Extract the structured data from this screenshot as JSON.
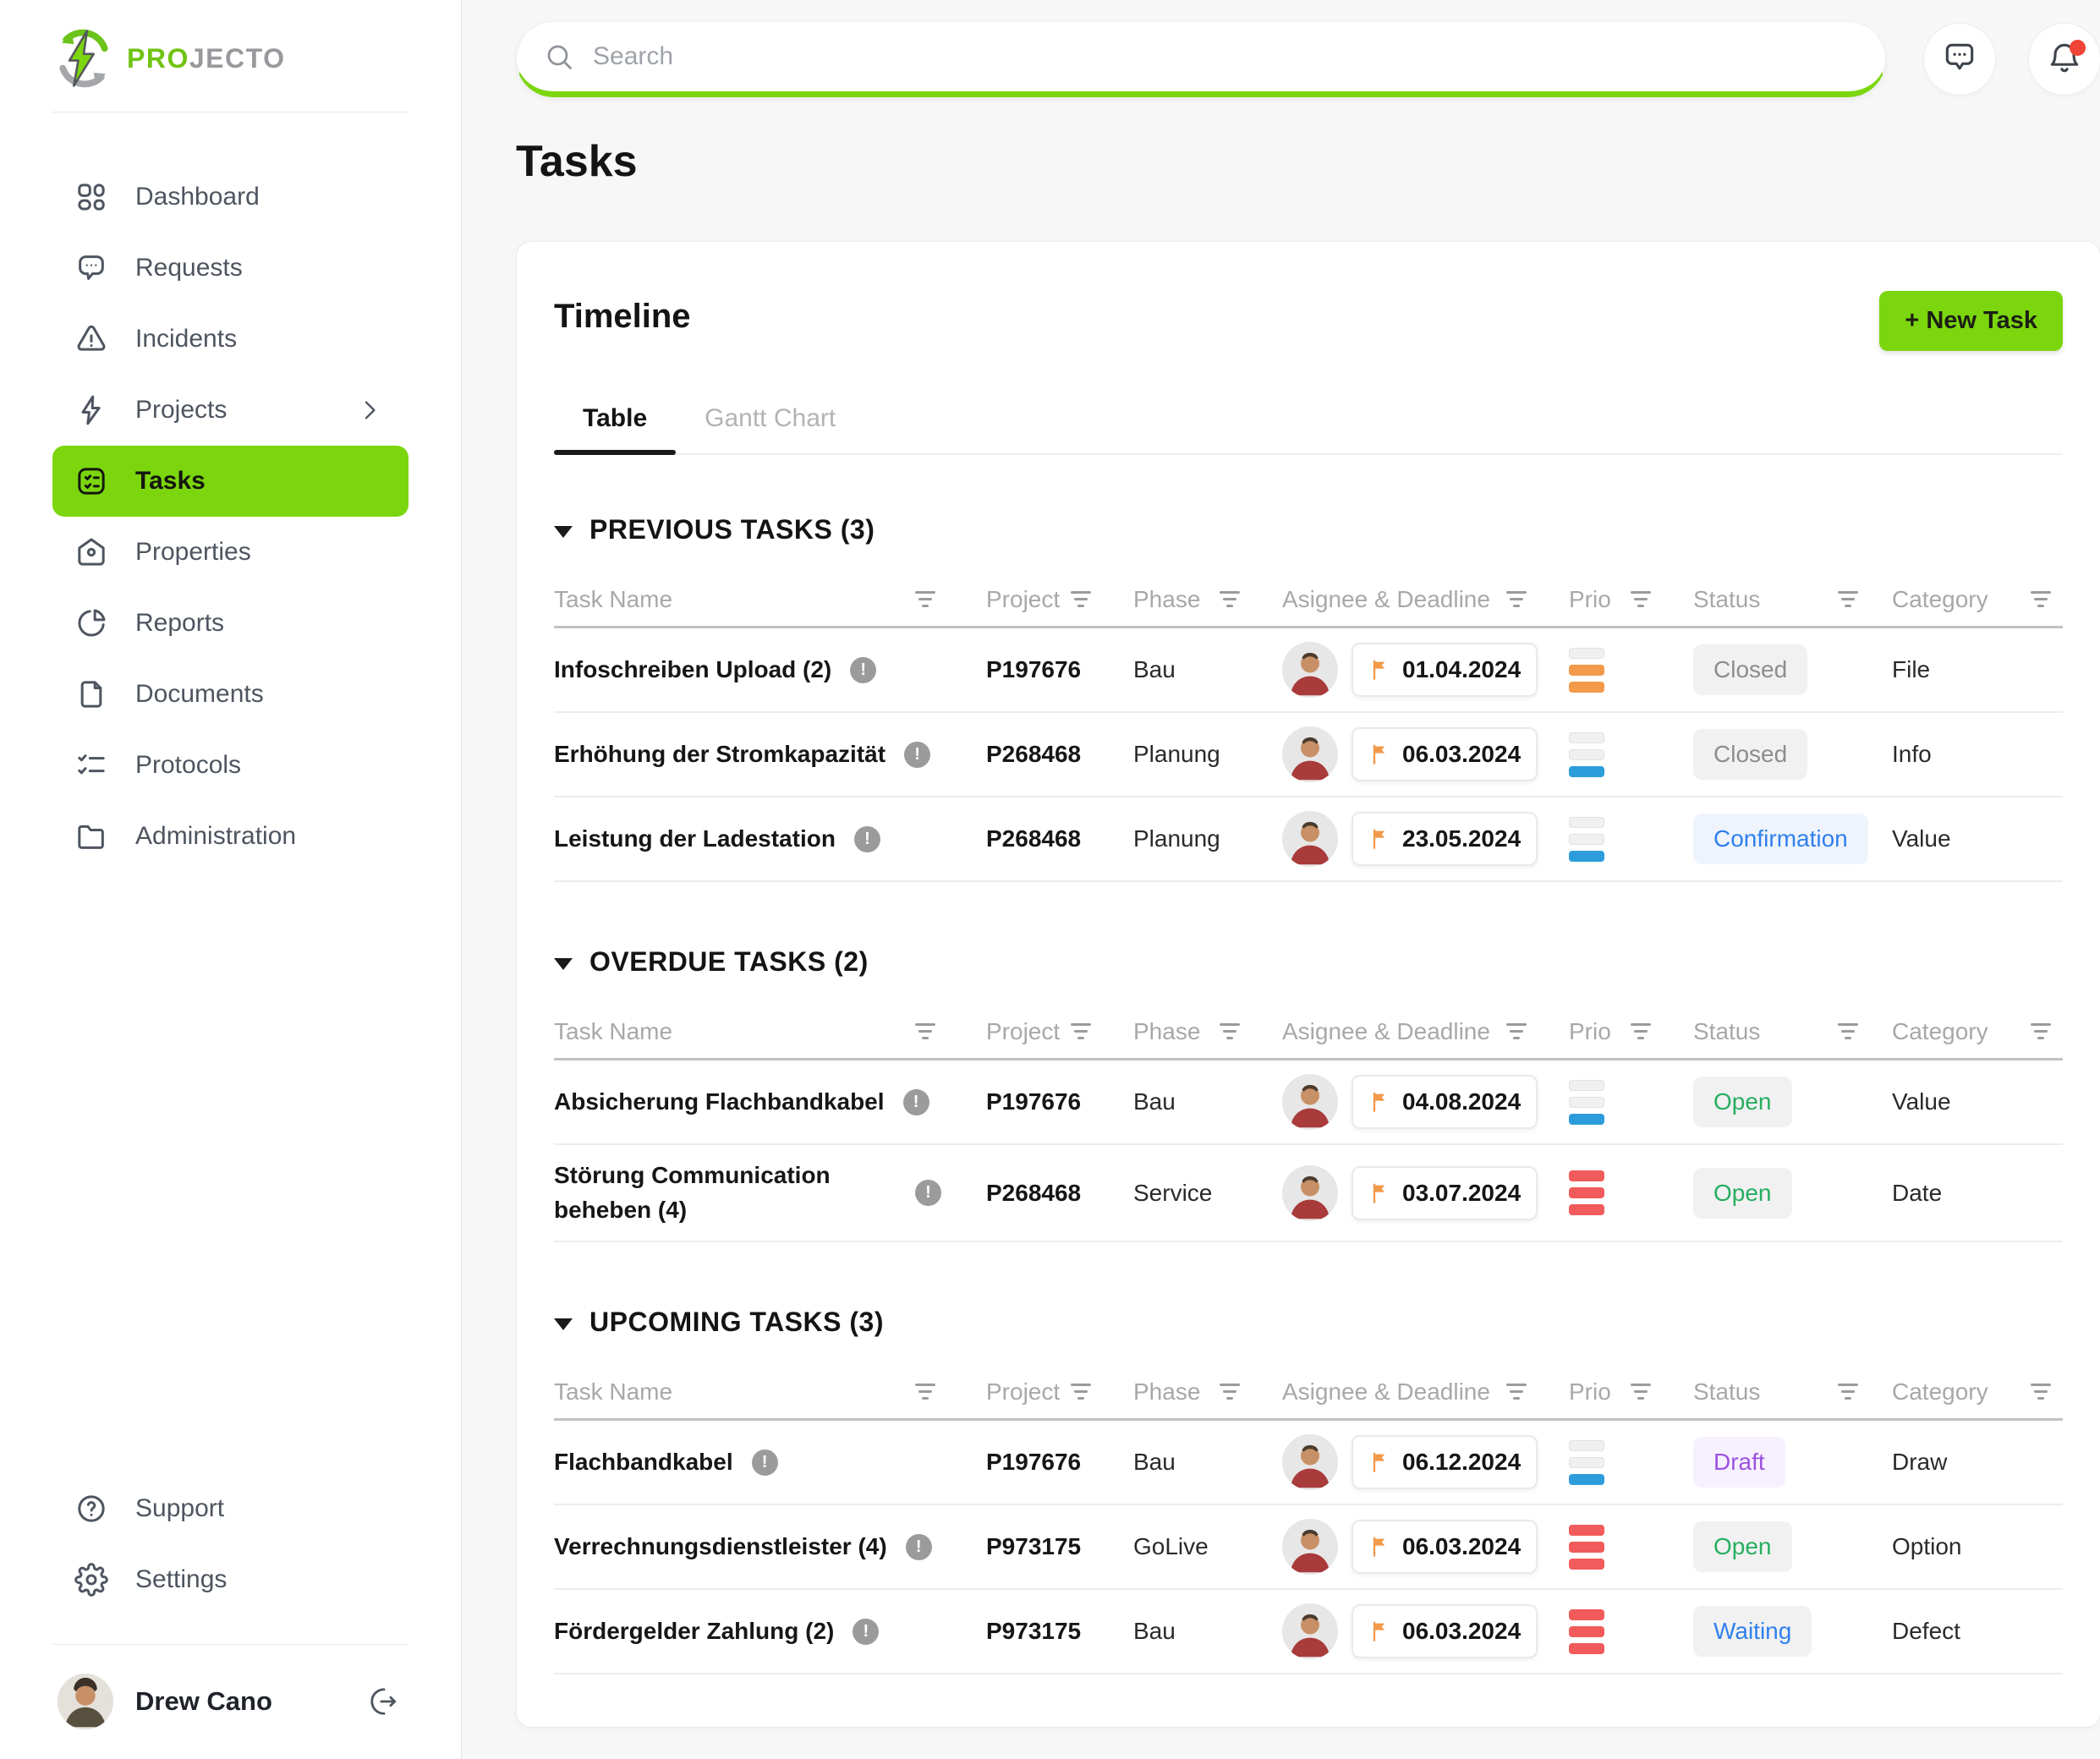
{
  "brand": {
    "pro": "PRO",
    "jecto": "JECTO"
  },
  "search": {
    "placeholder": "Search"
  },
  "topbar": {
    "buttons": [
      {
        "icon": "chat-bubble",
        "has_notification": false
      },
      {
        "icon": "bell",
        "has_notification": true
      }
    ]
  },
  "sidebar": {
    "items": [
      {
        "label": "Dashboard",
        "icon": "dashboard",
        "active": false,
        "chevron": false
      },
      {
        "label": "Requests",
        "icon": "requests",
        "active": false,
        "chevron": false
      },
      {
        "label": "Incidents",
        "icon": "incidents",
        "active": false,
        "chevron": false
      },
      {
        "label": "Projects",
        "icon": "projects",
        "active": false,
        "chevron": true
      },
      {
        "label": "Tasks",
        "icon": "tasks",
        "active": true,
        "chevron": false
      },
      {
        "label": "Properties",
        "icon": "properties",
        "active": false,
        "chevron": false
      },
      {
        "label": "Reports",
        "icon": "reports",
        "active": false,
        "chevron": false
      },
      {
        "label": "Documents",
        "icon": "documents",
        "active": false,
        "chevron": false
      },
      {
        "label": "Protocols",
        "icon": "protocols",
        "active": false,
        "chevron": false
      },
      {
        "label": "Administration",
        "icon": "administration",
        "active": false,
        "chevron": false
      }
    ],
    "footer_items": [
      {
        "label": "Support",
        "icon": "support"
      },
      {
        "label": "Settings",
        "icon": "settings"
      }
    ],
    "user": {
      "name": "Drew Cano"
    }
  },
  "page": {
    "title": "Tasks"
  },
  "card": {
    "title": "Timeline",
    "new_task_label": "+ New Task",
    "tabs": [
      {
        "label": "Table",
        "active": true
      },
      {
        "label": "Gantt Chart",
        "active": false
      }
    ],
    "columns": [
      "Task Name",
      "Project",
      "Phase",
      "Asignee & Deadline",
      "Prio",
      "Status",
      "Category"
    ],
    "sections": [
      {
        "title": "PREVIOUS TASKS (3)",
        "rows": [
          {
            "name": "Infoschreiben Upload (2)",
            "project": "P197676",
            "phase": "Bau",
            "deadline": "01.04.2024",
            "prio": "medium",
            "status": "Closed",
            "category": "File"
          },
          {
            "name": "Erhöhung der Stromkapazität",
            "project": "P268468",
            "phase": "Planung",
            "deadline": "06.03.2024",
            "prio": "low",
            "status": "Closed",
            "category": "Info"
          },
          {
            "name": "Leistung der Ladestation",
            "project": "P268468",
            "phase": "Planung",
            "deadline": "23.05.2024",
            "prio": "low",
            "status": "Confirmation",
            "category": "Value"
          }
        ]
      },
      {
        "title": "OVERDUE TASKS (2)",
        "rows": [
          {
            "name": "Absicherung Flachbandkabel",
            "project": "P197676",
            "phase": "Bau",
            "deadline": "04.08.2024",
            "prio": "low",
            "status": "Open",
            "category": "Value"
          },
          {
            "name": "Störung Communication beheben (4)",
            "project": "P268468",
            "phase": "Service",
            "deadline": "03.07.2024",
            "prio": "high",
            "status": "Open",
            "category": "Date"
          }
        ]
      },
      {
        "title": "UPCOMING TASKS (3)",
        "rows": [
          {
            "name": "Flachbandkabel",
            "project": "P197676",
            "phase": "Bau",
            "deadline": "06.12.2024",
            "prio": "low",
            "status": "Draft",
            "category": "Draw"
          },
          {
            "name": "Verrechnungsdienstleister (4)",
            "project": "P973175",
            "phase": "GoLive",
            "deadline": "06.03.2024",
            "prio": "high",
            "status": "Open",
            "category": "Option"
          },
          {
            "name": "Fördergelder Zahlung (2)",
            "project": "P973175",
            "phase": "Bau",
            "deadline": "06.03.2024",
            "prio": "high",
            "status": "Waiting",
            "category": "Defect"
          }
        ]
      }
    ]
  },
  "icons": {
    "search-icon": "magnifier",
    "chat-icon": "speech-bubble-with-dots",
    "bell-icon": "bell-with-red-dot",
    "filter-icon": "three-shrinking-lines",
    "flag-icon": "orange-flag",
    "info-icon": "gray-circle-exclamation",
    "caret-down-icon": "filled-triangle-down",
    "logout-icon": "arrow-leaving-circle"
  },
  "colors": {
    "accent_green": "#7cd60e",
    "prio_low": "#2d9cdb",
    "prio_medium": "#f2994a",
    "prio_high": "#f15b5b",
    "prio_empty": "#f0f0f0",
    "status_open_text": "#27ae60",
    "status_waiting_text": "#2f80ed",
    "status_confirmation_text": "#2f80ed",
    "status_draft_text": "#9b51e0",
    "status_closed_text": "#8d8d8d",
    "flag_orange": "#f2994a",
    "notification_red": "#f04438"
  }
}
